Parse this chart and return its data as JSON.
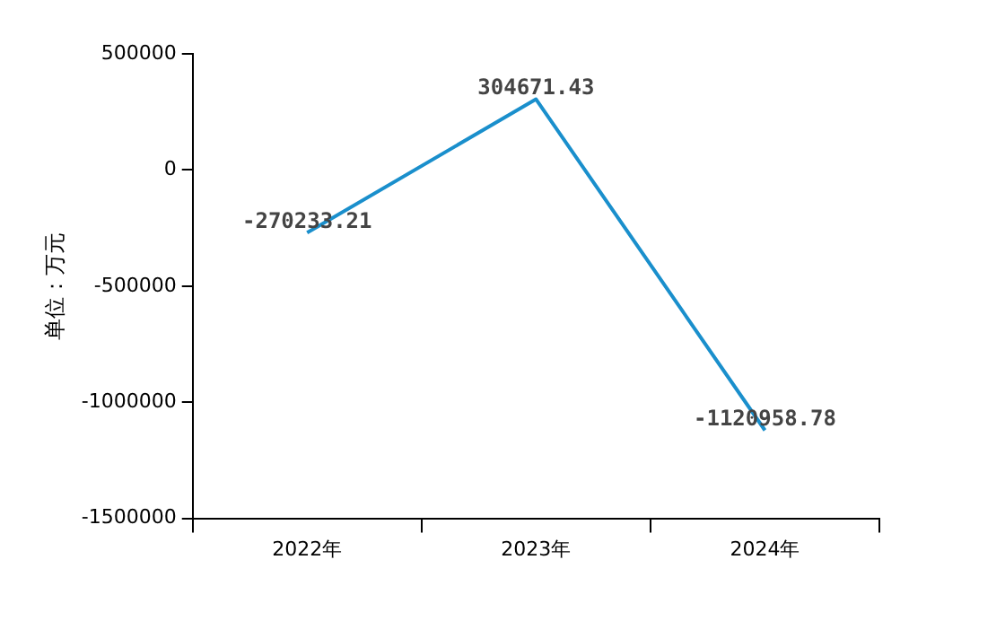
{
  "chart_data": {
    "type": "line",
    "ylabel": "单位：万元",
    "categories": [
      "2022年",
      "2023年",
      "2024年"
    ],
    "series": [
      {
        "color": "#1a8fcc",
        "values": [
          -270233.21,
          304671.43,
          -1120958.78
        ]
      }
    ],
    "ylim": [
      -1500000,
      500000
    ],
    "yticks": [
      -1500000,
      -1000000,
      -500000,
      0,
      500000
    ],
    "grid": false,
    "legend": false,
    "marker": "none",
    "line_style": "solid",
    "data_labels": true
  }
}
